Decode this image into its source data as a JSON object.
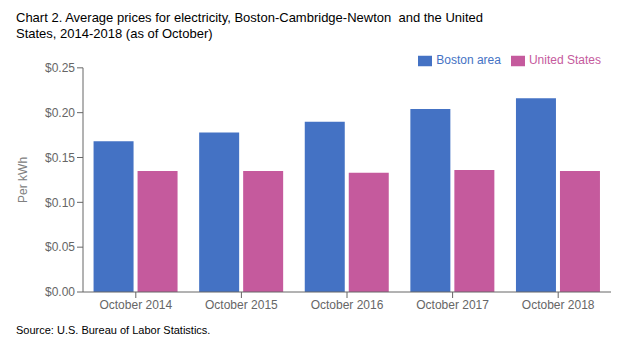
{
  "chart_data": {
    "type": "bar",
    "title": "Chart 2. Average prices for electricity, Boston-Cambridge-Newton  and the United\nStates, 2014-2018 (as of October)",
    "ylabel": "Per kWh",
    "annotations": [
      "Source: U.S. Bureau of Labor Statistics."
    ],
    "categories": [
      "October 2014",
      "October 2015",
      "October 2016",
      "October 2017",
      "October 2018"
    ],
    "series": [
      {
        "name": "Boston area",
        "color": "#4472C4",
        "values": [
          0.168,
          0.178,
          0.19,
          0.204,
          0.216
        ]
      },
      {
        "name": "United States",
        "color": "#C55A9D",
        "values": [
          0.135,
          0.135,
          0.133,
          0.136,
          0.135
        ]
      }
    ],
    "ylim": [
      0,
      0.25
    ],
    "yticks": [
      {
        "value": 0,
        "label": "$0.00"
      },
      {
        "value": 0.05,
        "label": "$0.05"
      },
      {
        "value": 0.1,
        "label": "$0.10"
      },
      {
        "value": 0.15,
        "label": "$0.15"
      },
      {
        "value": 0.2,
        "label": "$0.20"
      },
      {
        "value": 0.25,
        "label": "$0.25"
      }
    ],
    "grid": false,
    "legend": "top"
  }
}
